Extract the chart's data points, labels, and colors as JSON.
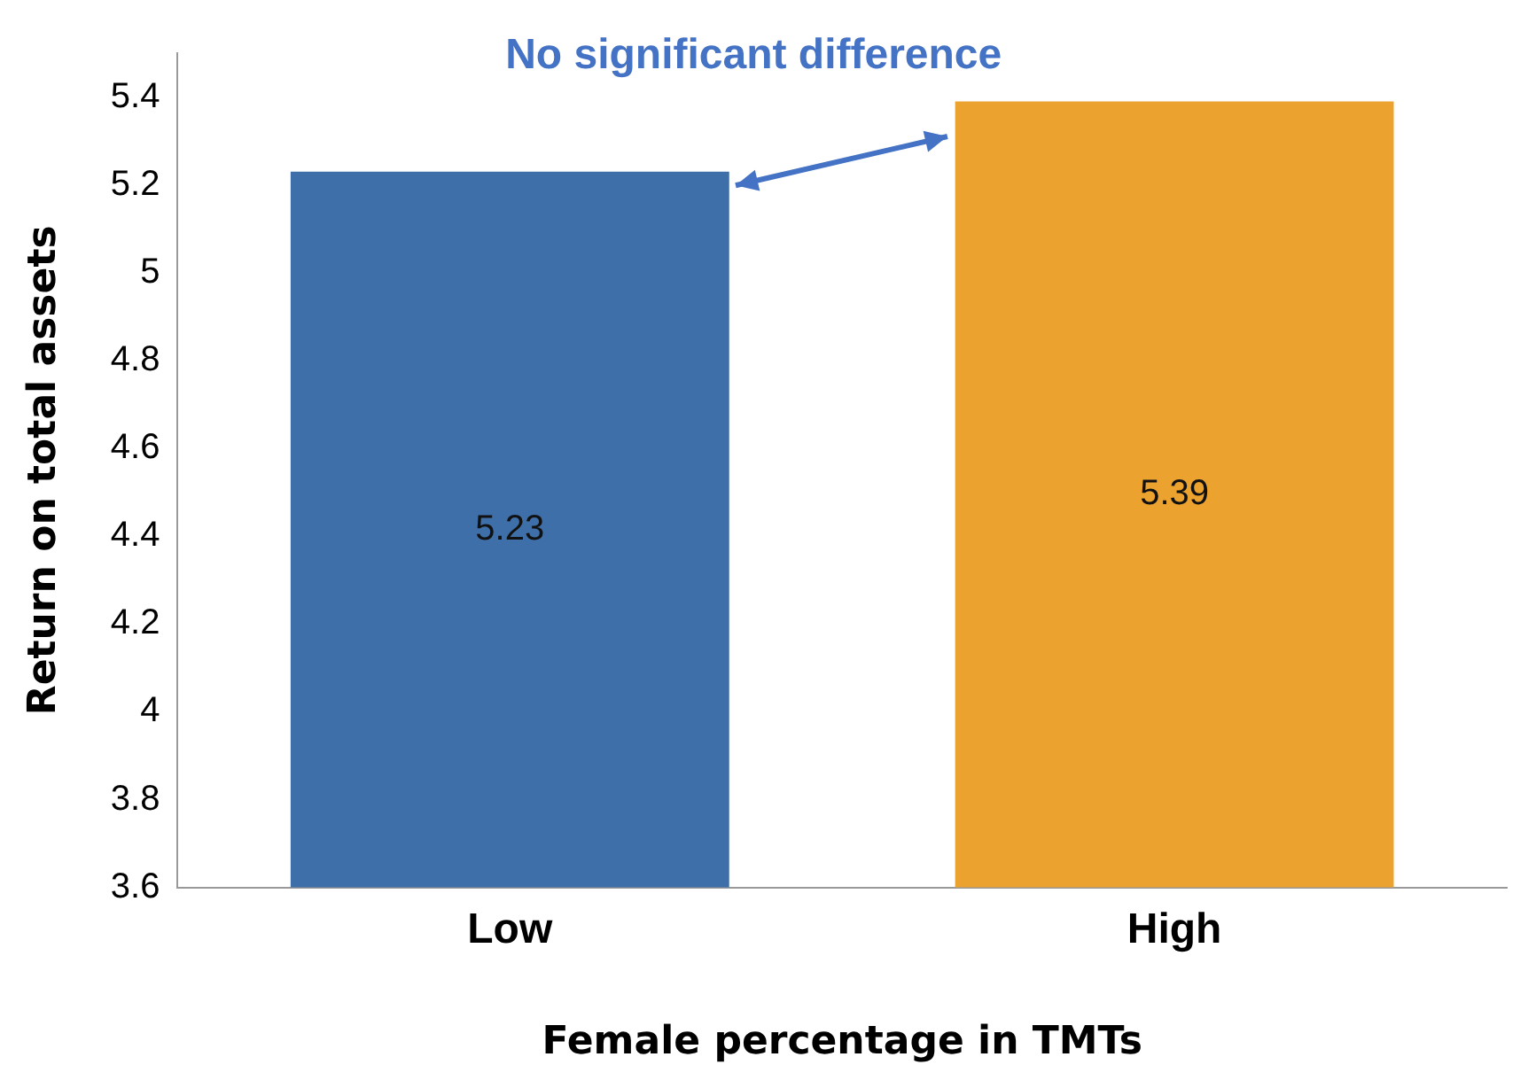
{
  "chart_data": {
    "type": "bar",
    "xlabel": "Female percentage in TMTs",
    "ylabel": "Return on total assets",
    "categories": [
      "Low",
      "High"
    ],
    "series": [
      {
        "values": [
          5.23,
          5.39
        ],
        "colors": [
          "#3f6fa8",
          "#eba22f"
        ]
      }
    ],
    "ylim": [
      3.6,
      5.5
    ],
    "yticks": [
      3.6,
      3.8,
      4,
      4.2,
      4.4,
      4.6,
      4.8,
      5,
      5.2,
      5.4
    ],
    "grid": false,
    "legend": false,
    "data_labels": true,
    "annotations": [
      "No significant difference"
    ]
  }
}
